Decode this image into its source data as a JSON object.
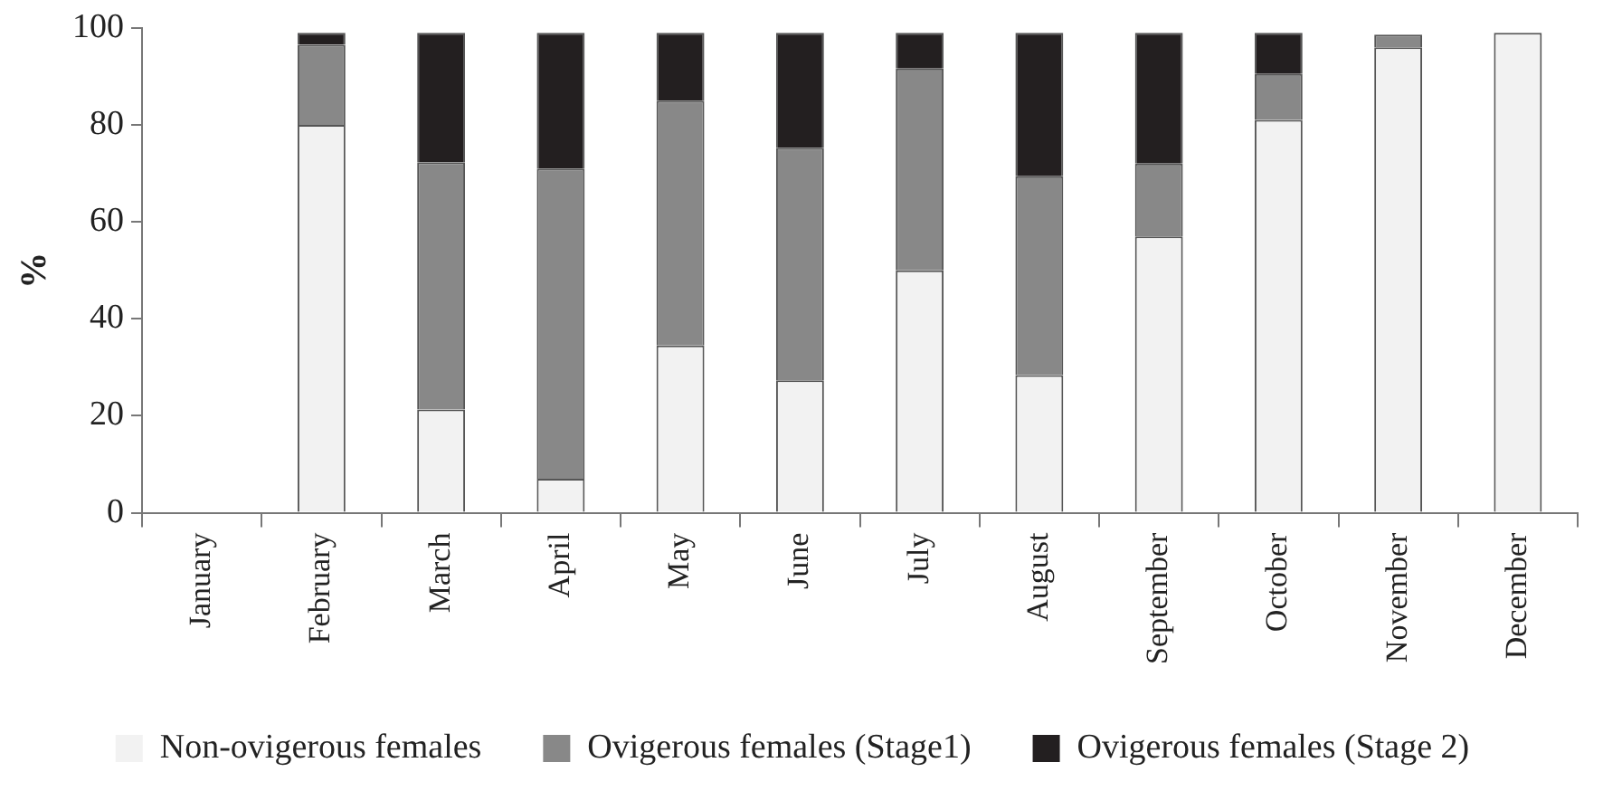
{
  "chart_data": {
    "type": "bar",
    "stacked": true,
    "ylabel": "%",
    "categories": [
      "January",
      "February",
      "March",
      "April",
      "May",
      "June",
      "July",
      "August",
      "September",
      "October",
      "November",
      "December"
    ],
    "series": [
      {
        "name": "Non-ovigerous females",
        "color": "#f2f2f2",
        "values": [
          null,
          80,
          21.3,
          7,
          34.5,
          27.3,
          50,
          28.4,
          57,
          81,
          96,
          99
        ]
      },
      {
        "name": "Ovigerous females (Stage1)",
        "color": "#888888",
        "values": [
          null,
          16.5,
          51,
          64,
          50.5,
          48,
          41.6,
          41,
          15,
          9.5,
          2.6,
          0
        ]
      },
      {
        "name": "Ovigerous females (Stage 2)",
        "color": "#231f20",
        "values": [
          null,
          2.5,
          26.7,
          28,
          14,
          23.7,
          7.4,
          29.6,
          27,
          8.5,
          0,
          0
        ]
      }
    ],
    "ylim": [
      0,
      100
    ],
    "yticks": [
      0,
      20,
      40,
      60,
      80,
      100
    ],
    "grid": false,
    "legend": "bottom"
  }
}
